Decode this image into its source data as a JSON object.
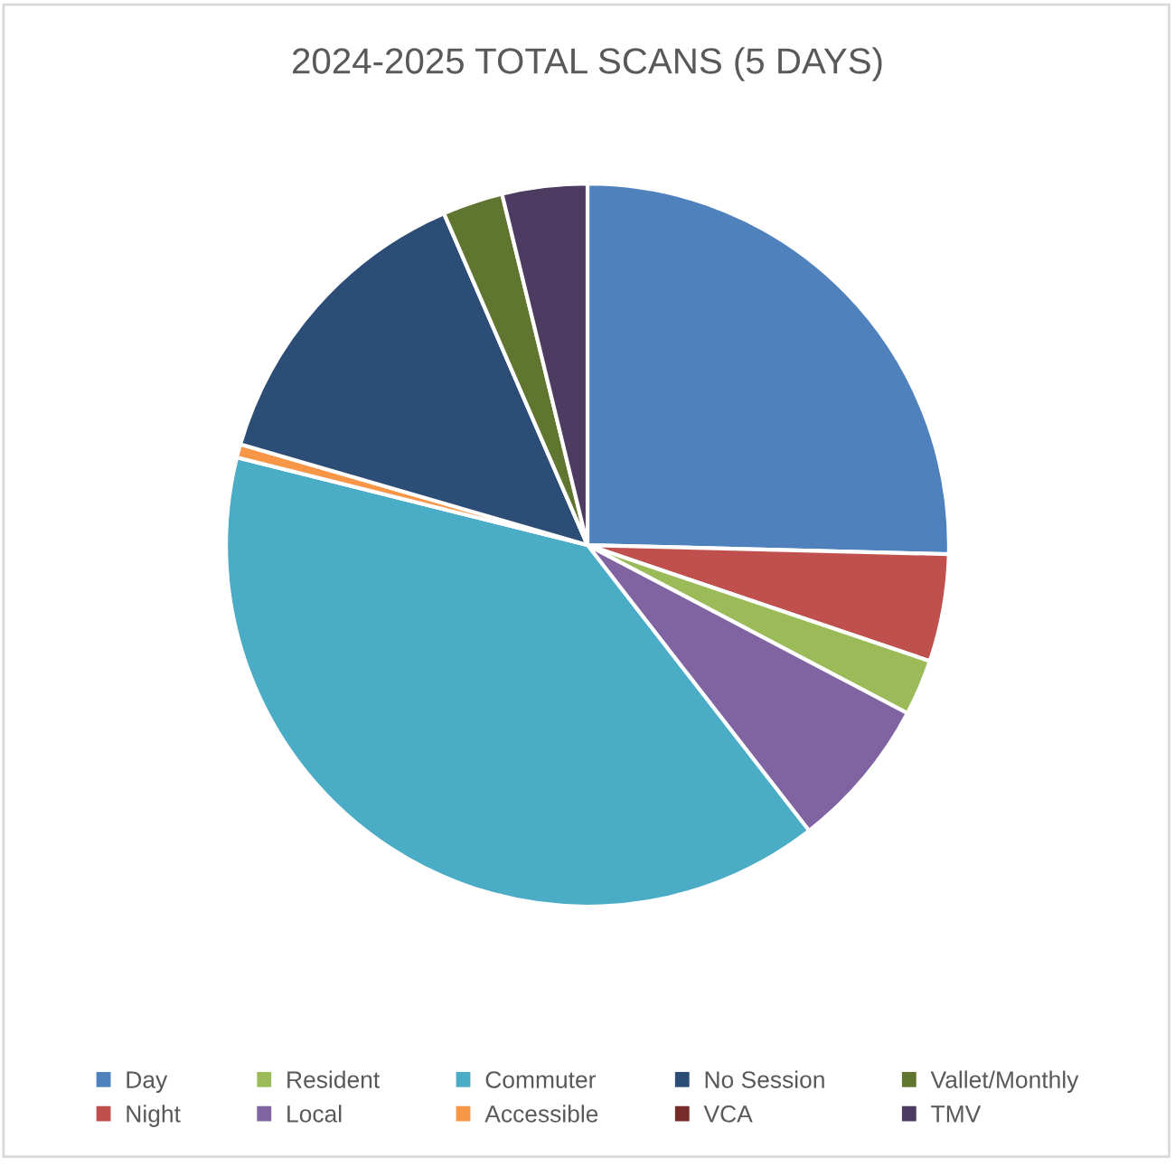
{
  "chart_data": {
    "type": "pie",
    "title": "2024-2025 TOTAL SCANS (5 DAYS)",
    "categories": [
      "Day",
      "Night",
      "Resident",
      "Local",
      "Commuter",
      "Accessible",
      "No Session",
      "VCA",
      "Vallet/Monthly",
      "TMV"
    ],
    "values": [
      25.4,
      4.8,
      2.5,
      6.8,
      39.4,
      0.6,
      14,
      0,
      2.7,
      3.8
    ],
    "colors": [
      "#4f81bd",
      "#c0504d",
      "#9bbb59",
      "#8064a2",
      "#4bacc6",
      "#f79646",
      "#2c4d75",
      "#772c2a",
      "#5f7530",
      "#4d3b62"
    ],
    "legend": "bottom"
  }
}
